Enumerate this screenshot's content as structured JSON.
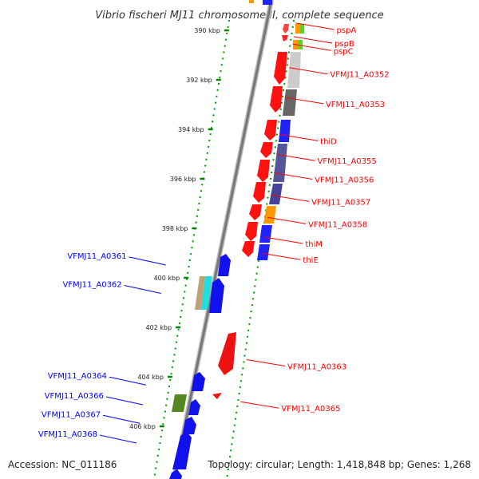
{
  "title": "Vibrio fischeri MJ11 chromosome II, complete sequence",
  "accession": "Accession: NC_011186",
  "topology": "Topology: circular; Length: 1,418,848 bp; Genes: 1,268",
  "colors": {
    "forward": "#0000ff",
    "reverse": "#ff0000",
    "backbone": "#888888",
    "dots": "#008800"
  },
  "ticks": [
    {
      "label": "390 kbp",
      "kbp": 390
    },
    {
      "label": "392 kbp",
      "kbp": 392
    },
    {
      "label": "394 kbp",
      "kbp": 394
    },
    {
      "label": "396 kbp",
      "kbp": 396
    },
    {
      "label": "398 kbp",
      "kbp": 398
    },
    {
      "label": "400 kbp",
      "kbp": 400
    },
    {
      "label": "402 kbp",
      "kbp": 402
    },
    {
      "label": "404 kbp",
      "kbp": 404
    },
    {
      "label": "406 kbp",
      "kbp": 406
    }
  ],
  "reverse_genes": [
    {
      "name": "pspA",
      "kbp": 389.9
    },
    {
      "name": "pspB",
      "kbp": 390.45
    },
    {
      "name": "pspC",
      "kbp": 390.75
    },
    {
      "name": "VFMJ11_A0352",
      "kbp": 391.7
    },
    {
      "name": "VFMJ11_A0353",
      "kbp": 392.9
    },
    {
      "name": "thiD",
      "kbp": 394.4
    },
    {
      "name": "VFMJ11_A0355",
      "kbp": 395.2
    },
    {
      "name": "VFMJ11_A0356",
      "kbp": 395.95
    },
    {
      "name": "VFMJ11_A0357",
      "kbp": 396.85
    },
    {
      "name": "VFMJ11_A0358",
      "kbp": 397.75
    },
    {
      "name": "thiM",
      "kbp": 398.55
    },
    {
      "name": "thiE",
      "kbp": 399.2
    },
    {
      "name": "VFMJ11_A0363",
      "kbp": 403.5
    },
    {
      "name": "VFMJ11_A0365",
      "kbp": 405.2
    }
  ],
  "forward_genes": [
    {
      "name": "VFMJ11_A0361",
      "kbp": 399.35
    },
    {
      "name": "VFMJ11_A0362",
      "kbp": 400.5
    },
    {
      "name": "VFMJ11_A0364",
      "kbp": 404.2
    },
    {
      "name": "VFMJ11_A0366",
      "kbp": 405.0
    },
    {
      "name": "VFMJ11_A0367",
      "kbp": 405.75
    },
    {
      "name": "VFMJ11_A0368",
      "kbp": 406.55
    }
  ]
}
